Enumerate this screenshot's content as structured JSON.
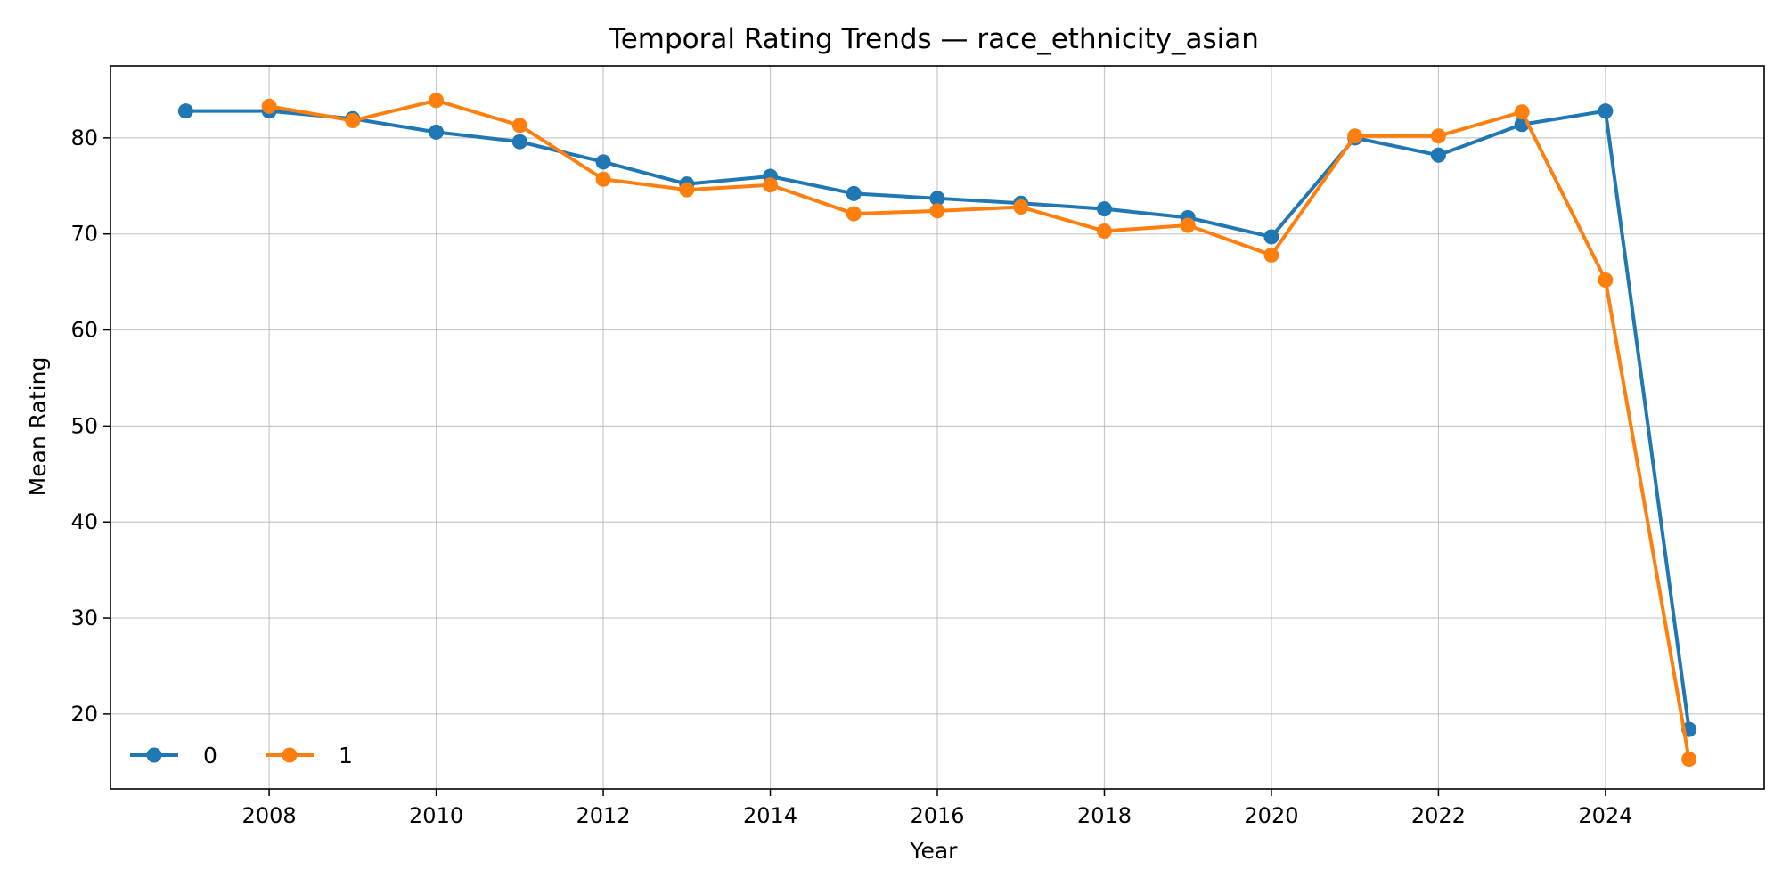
{
  "chart_data": {
    "type": "line",
    "title": "Temporal Rating Trends — race_ethnicity_asian",
    "xlabel": "Year",
    "ylabel": "Mean Rating",
    "xlim": [
      2006.1,
      2025.9
    ],
    "ylim": [
      12.2,
      87.5
    ],
    "xticks": [
      2008,
      2010,
      2012,
      2014,
      2016,
      2018,
      2020,
      2022,
      2024
    ],
    "yticks": [
      20,
      30,
      40,
      50,
      60,
      70,
      80
    ],
    "grid": true,
    "legend_position": "lower-left",
    "legend_columns": 2,
    "series": [
      {
        "name": "0",
        "color": "#1f77b4",
        "marker": "circle",
        "x": [
          2007,
          2008,
          2009,
          2010,
          2011,
          2012,
          2013,
          2014,
          2015,
          2016,
          2017,
          2018,
          2019,
          2020,
          2021,
          2022,
          2023,
          2024,
          2025
        ],
        "y": [
          82.8,
          82.8,
          82.0,
          80.6,
          79.6,
          77.5,
          75.2,
          76.0,
          74.2,
          73.7,
          73.2,
          72.6,
          71.7,
          69.7,
          80.0,
          78.2,
          81.4,
          82.8,
          18.4
        ]
      },
      {
        "name": "1",
        "color": "#ff7f0e",
        "marker": "circle",
        "x": [
          2008,
          2009,
          2010,
          2011,
          2012,
          2013,
          2014,
          2015,
          2016,
          2017,
          2018,
          2019,
          2020,
          2021,
          2022,
          2023,
          2024,
          2025
        ],
        "y": [
          83.3,
          81.8,
          83.9,
          81.3,
          75.7,
          74.6,
          75.1,
          72.1,
          72.4,
          72.8,
          70.3,
          70.9,
          67.8,
          80.2,
          80.2,
          82.7,
          65.2,
          15.3
        ]
      }
    ]
  }
}
